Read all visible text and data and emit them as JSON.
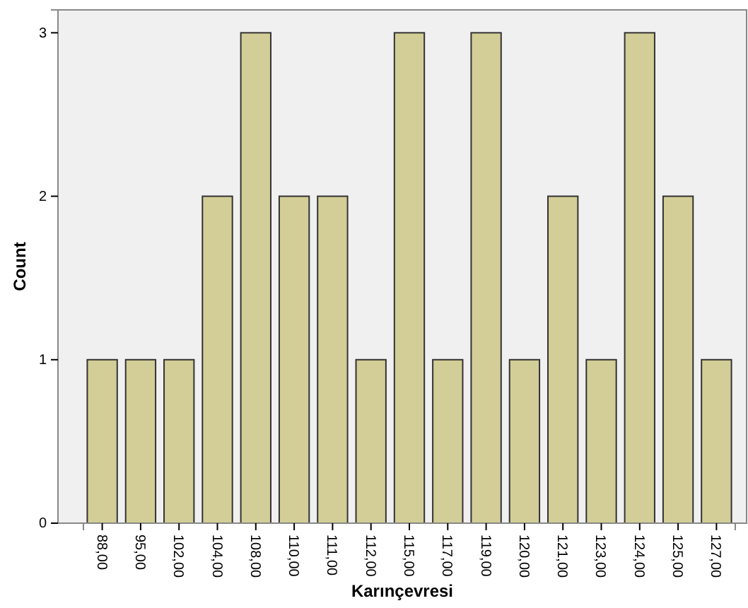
{
  "chart_data": {
    "type": "bar",
    "xlabel": "Karınçevresi",
    "ylabel": "Count",
    "categories": [
      "88,00",
      "95,00",
      "102,00",
      "104,00",
      "108,00",
      "110,00",
      "111,00",
      "112,00",
      "115,00",
      "117,00",
      "119,00",
      "120,00",
      "121,00",
      "123,00",
      "124,00",
      "125,00",
      "127,00"
    ],
    "values": [
      1,
      1,
      1,
      2,
      3,
      2,
      2,
      1,
      3,
      1,
      3,
      1,
      2,
      1,
      3,
      2,
      1
    ],
    "color": "#d3ce97",
    "ylim": [
      0,
      3.14
    ],
    "yticks": [
      0,
      1,
      2,
      3
    ],
    "grid": false
  }
}
